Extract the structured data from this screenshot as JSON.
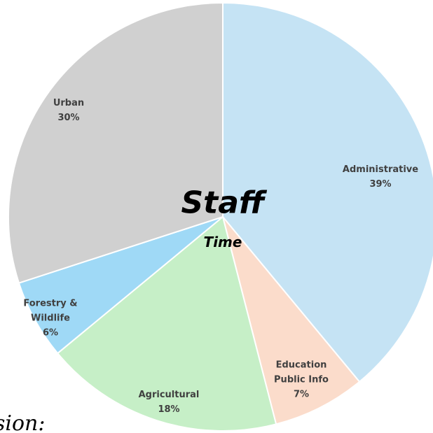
{
  "chart_data": {
    "type": "pie",
    "title": "Staff",
    "subtitle": "Time",
    "categories": [
      "Administrative",
      "Education Public Info",
      "Agricultural",
      "Forestry & Wildlife",
      "Urban"
    ],
    "values": [
      39,
      7,
      18,
      6,
      30
    ],
    "value_labels": [
      "39%",
      "7%",
      "18%",
      "6%",
      "30%"
    ],
    "colors": [
      "#c5e3f4",
      "#fbdccb",
      "#c6efc7",
      "#9fd9f6",
      "#d0d0d0"
    ],
    "annotation": "sion:"
  }
}
